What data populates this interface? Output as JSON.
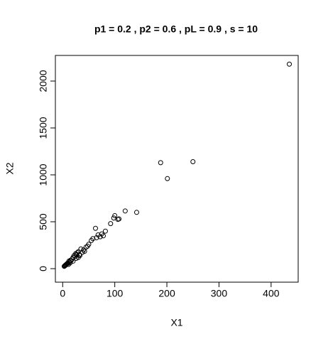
{
  "chart_data": {
    "type": "scatter",
    "title": "p1 = 0.2 ,  p2 = 0.6 ,  pL = 0.9 , s = 10",
    "x_label": "X1",
    "y_label": "X2",
    "xlim": [
      -14,
      452
    ],
    "ylim": [
      -144,
      2273
    ],
    "xticks": [
      0,
      100,
      200,
      300,
      400
    ],
    "yticks": [
      0,
      500,
      1000,
      1500,
      2000
    ],
    "color": "#000000",
    "series": [
      {
        "name": "points",
        "x": [
          435,
          250,
          188,
          201,
          142,
          120,
          100,
          98,
          106,
          108,
          92,
          63,
          82,
          75,
          68,
          72,
          65,
          78,
          58,
          50,
          48,
          45,
          40,
          35,
          30,
          28,
          25,
          22,
          20,
          18,
          15,
          12,
          10,
          8,
          6,
          5,
          4,
          3,
          7,
          9,
          13,
          16,
          24,
          27,
          32,
          38,
          42,
          55,
          30,
          20,
          14,
          11,
          26,
          33
        ],
        "values": [
          2180,
          1140,
          1130,
          960,
          600,
          615,
          565,
          540,
          525,
          530,
          480,
          430,
          400,
          370,
          360,
          340,
          330,
          350,
          320,
          260,
          240,
          230,
          200,
          210,
          180,
          170,
          160,
          140,
          120,
          100,
          90,
          80,
          60,
          50,
          40,
          35,
          30,
          25,
          45,
          55,
          70,
          85,
          130,
          150,
          150,
          175,
          185,
          300,
          120,
          80,
          60,
          45,
          110,
          140
        ]
      }
    ]
  }
}
